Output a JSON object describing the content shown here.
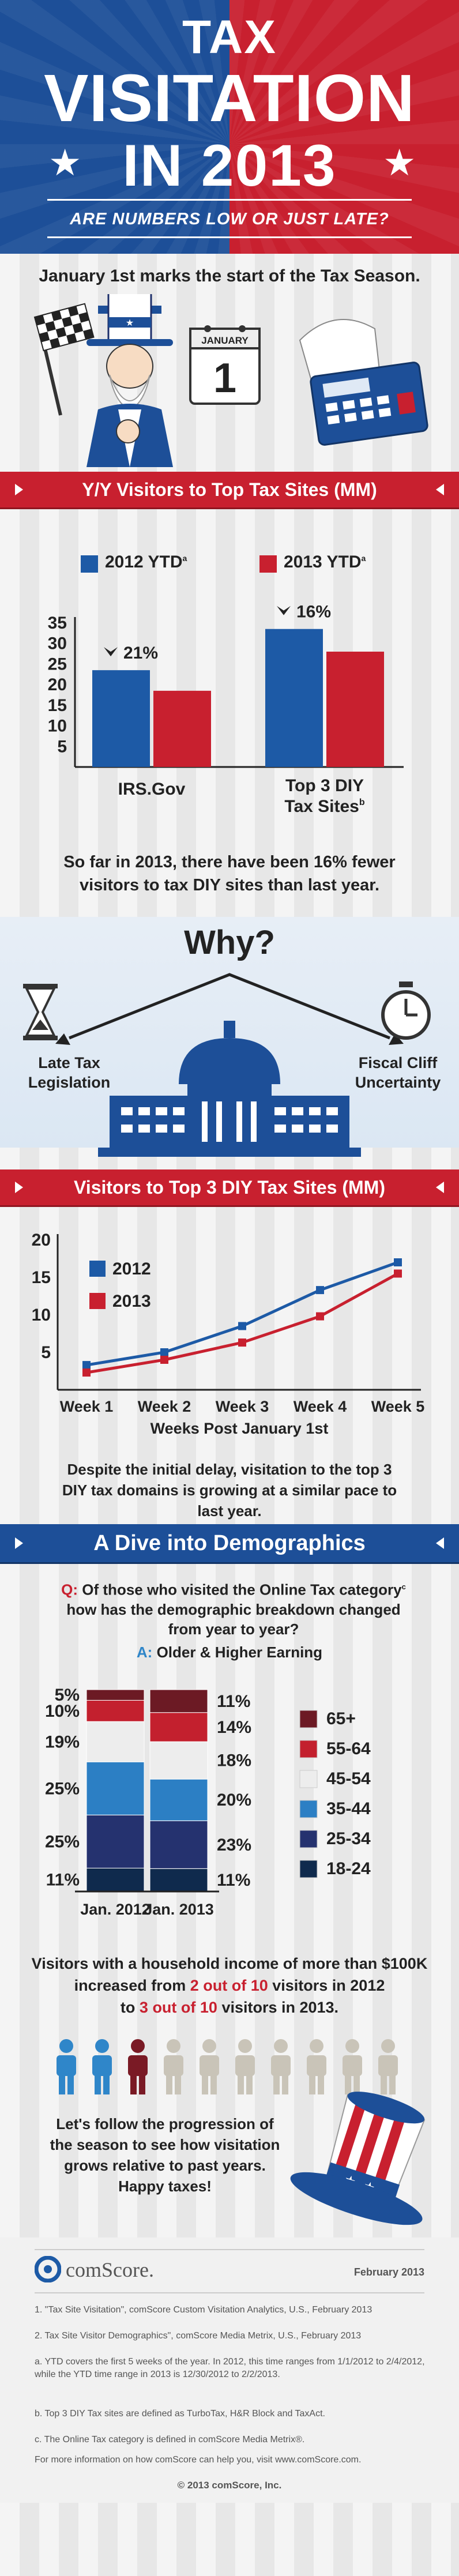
{
  "header": {
    "title_line1": "TAX",
    "title_line2": "VISITATION",
    "title_line3": "IN 2013",
    "subtitle": "ARE NUMBERS LOW OR JUST LATE?"
  },
  "intro": {
    "text": "January 1st marks the start of the Tax Season.",
    "calendar_month": "JANUARY",
    "calendar_day": "1"
  },
  "section1": {
    "title": "Y/Y Visitors to Top Tax Sites (MM)",
    "summary": "So far in 2013, there have been 16% fewer visitors to tax DIY sites than last year."
  },
  "why": {
    "title": "Why?",
    "left_label": "Late Tax Legislation",
    "right_label": "Fiscal Cliff Uncertainty"
  },
  "section2": {
    "title": "Visitors to Top 3 DIY Tax Sites (MM)",
    "x_title": "Weeks Post January 1st",
    "summary": "Despite the initial delay, visitation to the top 3 DIY tax domains is growing at a similar pace to last year."
  },
  "section3": {
    "title": "A Dive into Demographics",
    "q_label": "Q:",
    "question": "Of those who visited the Online Tax category",
    "question_sup": "c",
    "question2": "how has the demographic breakdown changed from year to year?",
    "a_label": "A:",
    "answer": "Older & Higher Earning",
    "income_line1": "Visitors with a household income of more than $100K",
    "income_line2_pre": "increased from",
    "income_line2_hl": "2 out of 10",
    "income_line2_post": "visitors in 2012",
    "income_line3_pre": "to",
    "income_line3_hl": "3 out of 10",
    "income_line3_post": "visitors in 2013.",
    "closing": "Let's follow the progression of the season to see how visitation grows relative to past years. Happy taxes!"
  },
  "footer": {
    "brand": "comScore.",
    "date": "February 2013",
    "notes": [
      "1. \"Tax Site Visitation\", comScore Custom Visitation Analytics, U.S., February 2013",
      "2. Tax Site Visitor Demographics\", comScore Media Metrix, U.S., February 2013",
      "a. YTD covers the first 5 weeks of the year. In 2012, this time ranges from 1/1/2012 to 2/4/2012, while the YTD time range in 2013 is 12/30/2012 to 2/2/2013.",
      "b. Top 3 DIY Tax sites are defined as TurboTax, H&R Block and TaxAct.",
      "c. The Online Tax category is defined in comScore Media Metrix®."
    ],
    "more_info": "For more information on how comScore can help you, visit www.comScore.com.",
    "copyright": "© 2013 comScore, Inc."
  },
  "colors": {
    "blue": "#1d5aa6",
    "red": "#c8202f",
    "dark_blue": "#1d2f6a",
    "light_blue": "#2f86c9",
    "light_gray": "#e6e6e6"
  },
  "chart_data": [
    {
      "type": "bar",
      "title": "Y/Y Visitors to Top Tax Sites (MM)",
      "categories": [
        "IRS.Gov",
        "Top 3 DIY Tax Sites"
      ],
      "category_sup": [
        "",
        "b"
      ],
      "series": [
        {
          "name": "2012 YTD",
          "sup": "a",
          "values": [
            23.5,
            33.5
          ]
        },
        {
          "name": "2013 YTD",
          "sup": "a",
          "values": [
            18.5,
            28
          ]
        }
      ],
      "yticks": [
        5,
        10,
        15,
        20,
        25,
        30,
        35
      ],
      "ylim": [
        0,
        35
      ],
      "annotations": [
        "21%",
        "16%"
      ],
      "xlabel": "",
      "ylabel": ""
    },
    {
      "type": "line",
      "title": "Visitors to Top 3 DIY Tax Sites (MM)",
      "x": [
        "Week 1",
        "Week 2",
        "Week 3",
        "Week 4",
        "Week 5"
      ],
      "series": [
        {
          "name": "2012",
          "values": [
            3.3,
            5.0,
            8.5,
            13.3,
            17.0
          ]
        },
        {
          "name": "2013",
          "values": [
            2.3,
            4.0,
            6.3,
            9.8,
            15.5
          ]
        }
      ],
      "yticks": [
        5,
        10,
        15,
        20
      ],
      "ylim": [
        0,
        20
      ],
      "xlabel": "Weeks Post January 1st",
      "ylabel": ""
    },
    {
      "type": "bar",
      "stacked": true,
      "title": "Demographic breakdown by age",
      "categories": [
        "Jan. 2012",
        "Jan. 2013"
      ],
      "series": [
        {
          "name": "18-24",
          "values": [
            11,
            11
          ]
        },
        {
          "name": "25-34",
          "values": [
            25,
            23
          ]
        },
        {
          "name": "35-44",
          "values": [
            25,
            20
          ]
        },
        {
          "name": "45-54",
          "values": [
            19,
            18
          ]
        },
        {
          "name": "55-64",
          "values": [
            10,
            14
          ]
        },
        {
          "name": "65+",
          "values": [
            5,
            11
          ]
        }
      ],
      "legend_order": [
        "65+",
        "55-64",
        "45-54",
        "35-44",
        "25-34",
        "18-24"
      ],
      "series_colors": [
        "#0f2a4d",
        "#25326f",
        "#2c7fc4",
        "#ededed",
        "#c3202e",
        "#6c1a24"
      ],
      "ylim": [
        0,
        100
      ]
    },
    {
      "type": "pictogram",
      "title": "Visitors with household income over $100K",
      "categories": [
        "2012",
        "2013"
      ],
      "values": [
        2,
        3
      ],
      "total": 10
    }
  ]
}
